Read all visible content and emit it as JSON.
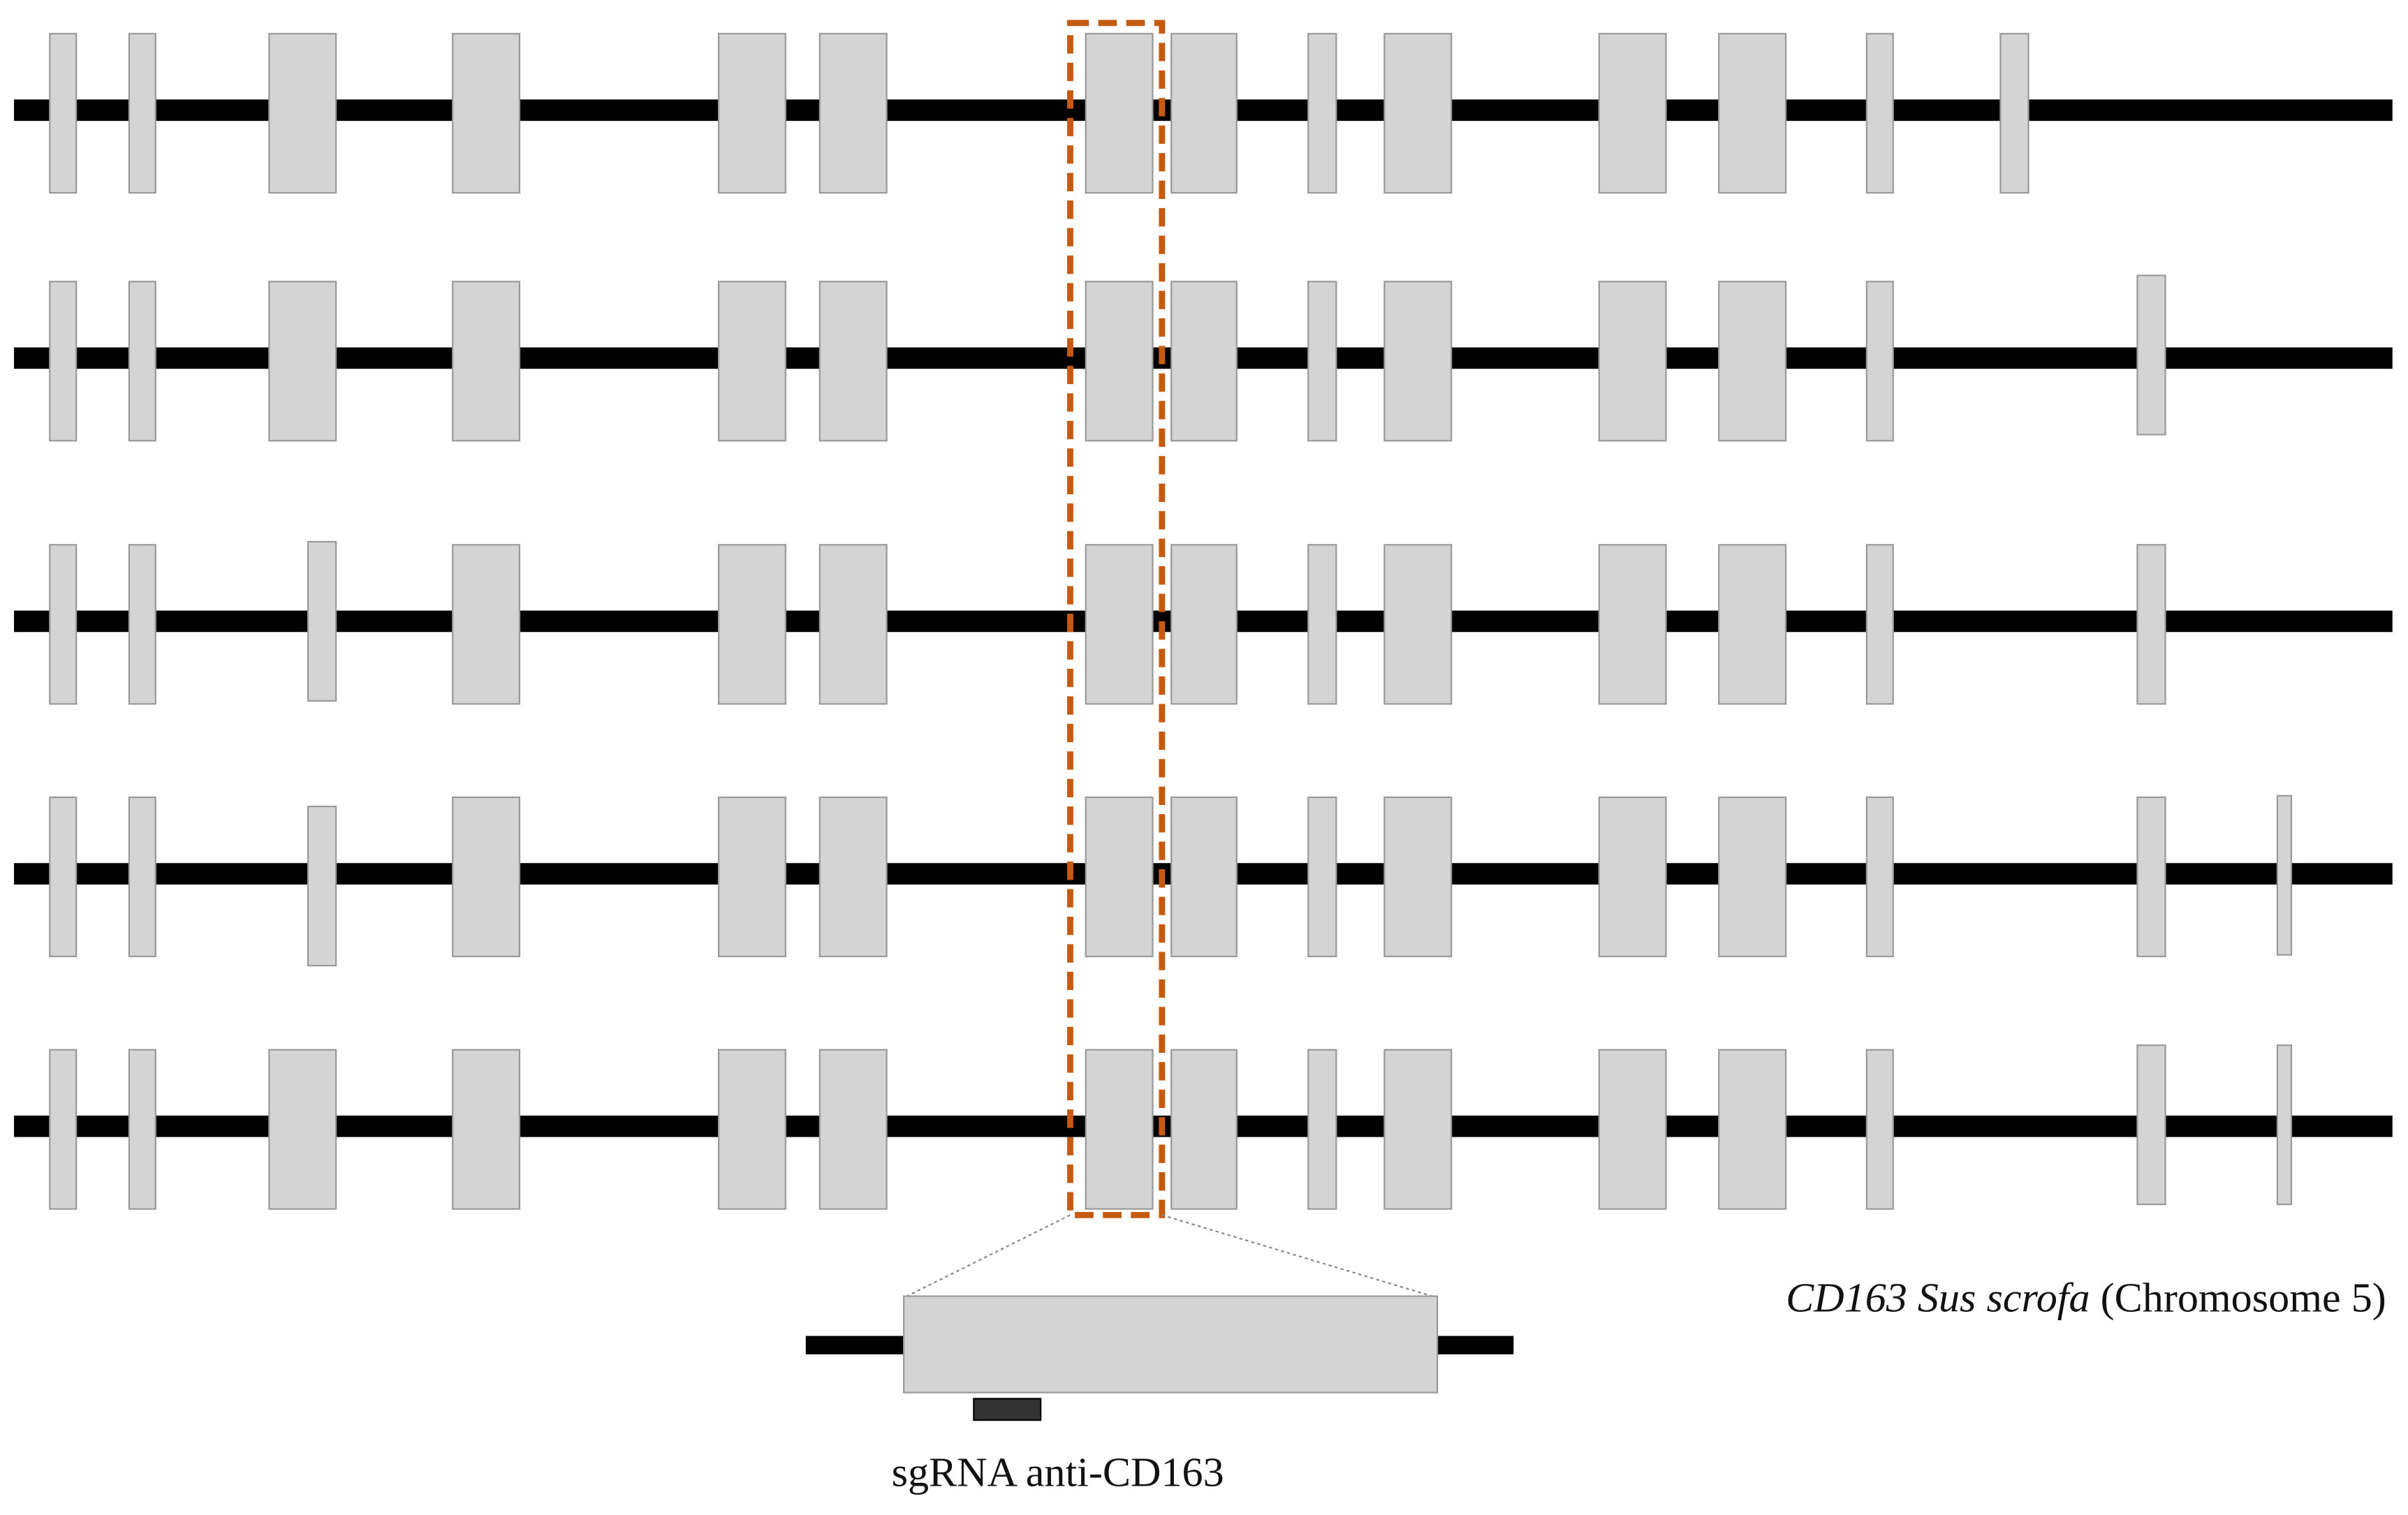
{
  "caption": {
    "gene": "CD163",
    "species": "Sus scrofa",
    "location": "(Chromosome 5)"
  },
  "sgrna_label": "sgRNA anti-CD163"
}
